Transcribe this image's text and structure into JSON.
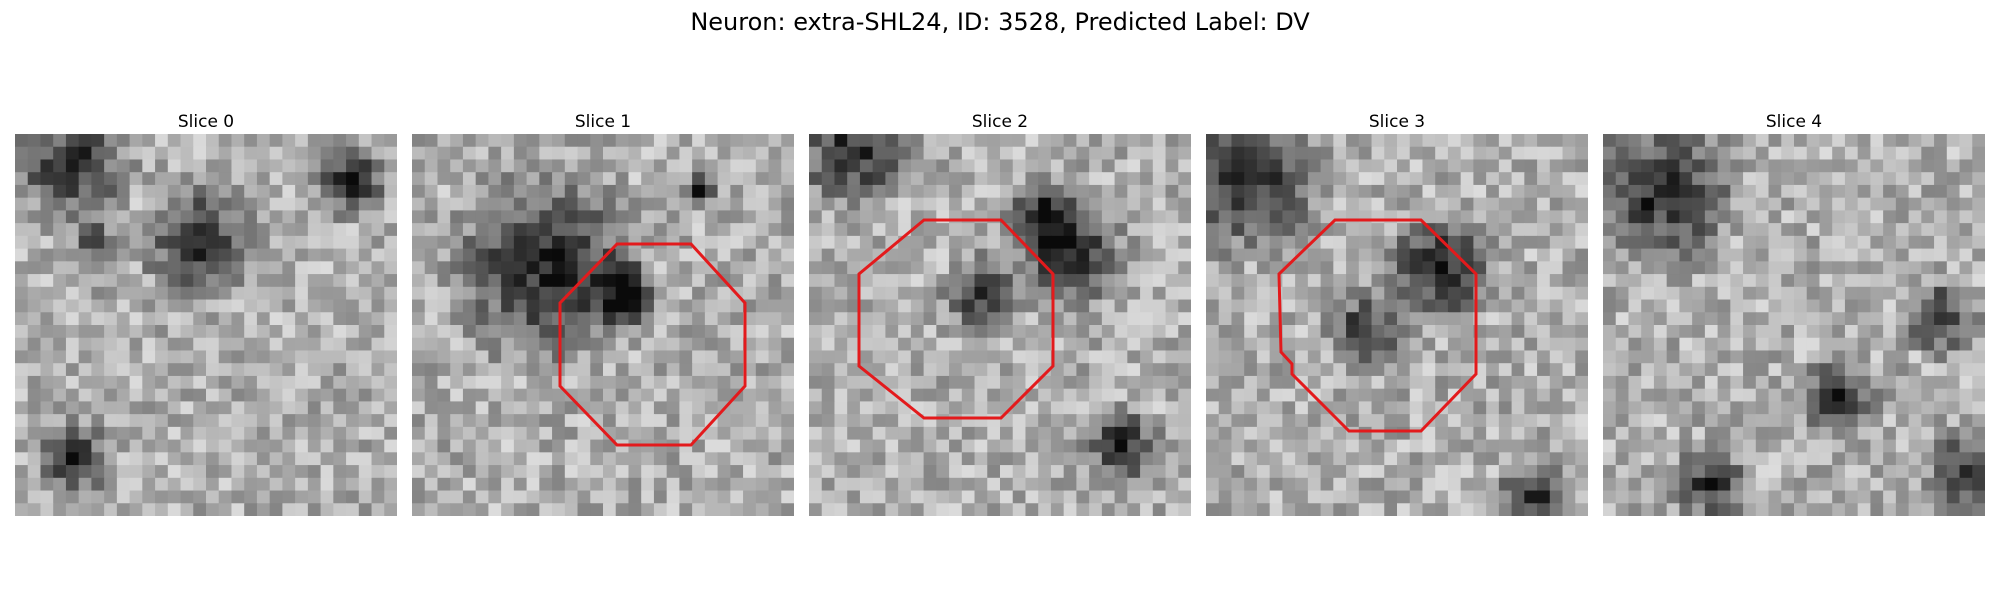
{
  "figure": {
    "title": "Neuron: extra-SHL24, ID: 3528, Predicted Label: DV",
    "roi_color": "#e31a1c"
  },
  "panels": [
    {
      "label": "Slice 0",
      "has_roi": false,
      "dark_spots": [
        [
          4,
          2,
          3
        ],
        [
          14,
          8,
          3
        ],
        [
          26,
          3,
          2
        ],
        [
          6,
          8,
          1
        ],
        [
          4,
          25,
          2
        ]
      ]
    },
    {
      "label": "Slice 1",
      "has_roi": true,
      "dark_spots": [
        [
          10,
          10,
          5
        ],
        [
          16,
          12,
          2
        ],
        [
          22,
          4,
          1
        ]
      ]
    },
    {
      "label": "Slice 2",
      "has_roi": true,
      "dark_spots": [
        [
          3,
          1,
          3
        ],
        [
          20,
          9,
          3
        ],
        [
          13,
          12,
          2
        ],
        [
          24,
          24,
          2
        ],
        [
          18,
          6,
          2
        ]
      ]
    },
    {
      "label": "Slice 3",
      "has_roi": true,
      "dark_spots": [
        [
          3,
          3,
          4
        ],
        [
          18,
          10,
          3
        ],
        [
          12,
          15,
          2
        ],
        [
          25,
          28,
          2
        ]
      ]
    },
    {
      "label": "Slice 4",
      "has_roi": false,
      "dark_spots": [
        [
          4,
          4,
          4
        ],
        [
          26,
          14,
          2
        ],
        [
          18,
          20,
          2
        ],
        [
          8,
          27,
          2
        ],
        [
          28,
          26,
          2
        ]
      ]
    }
  ]
}
